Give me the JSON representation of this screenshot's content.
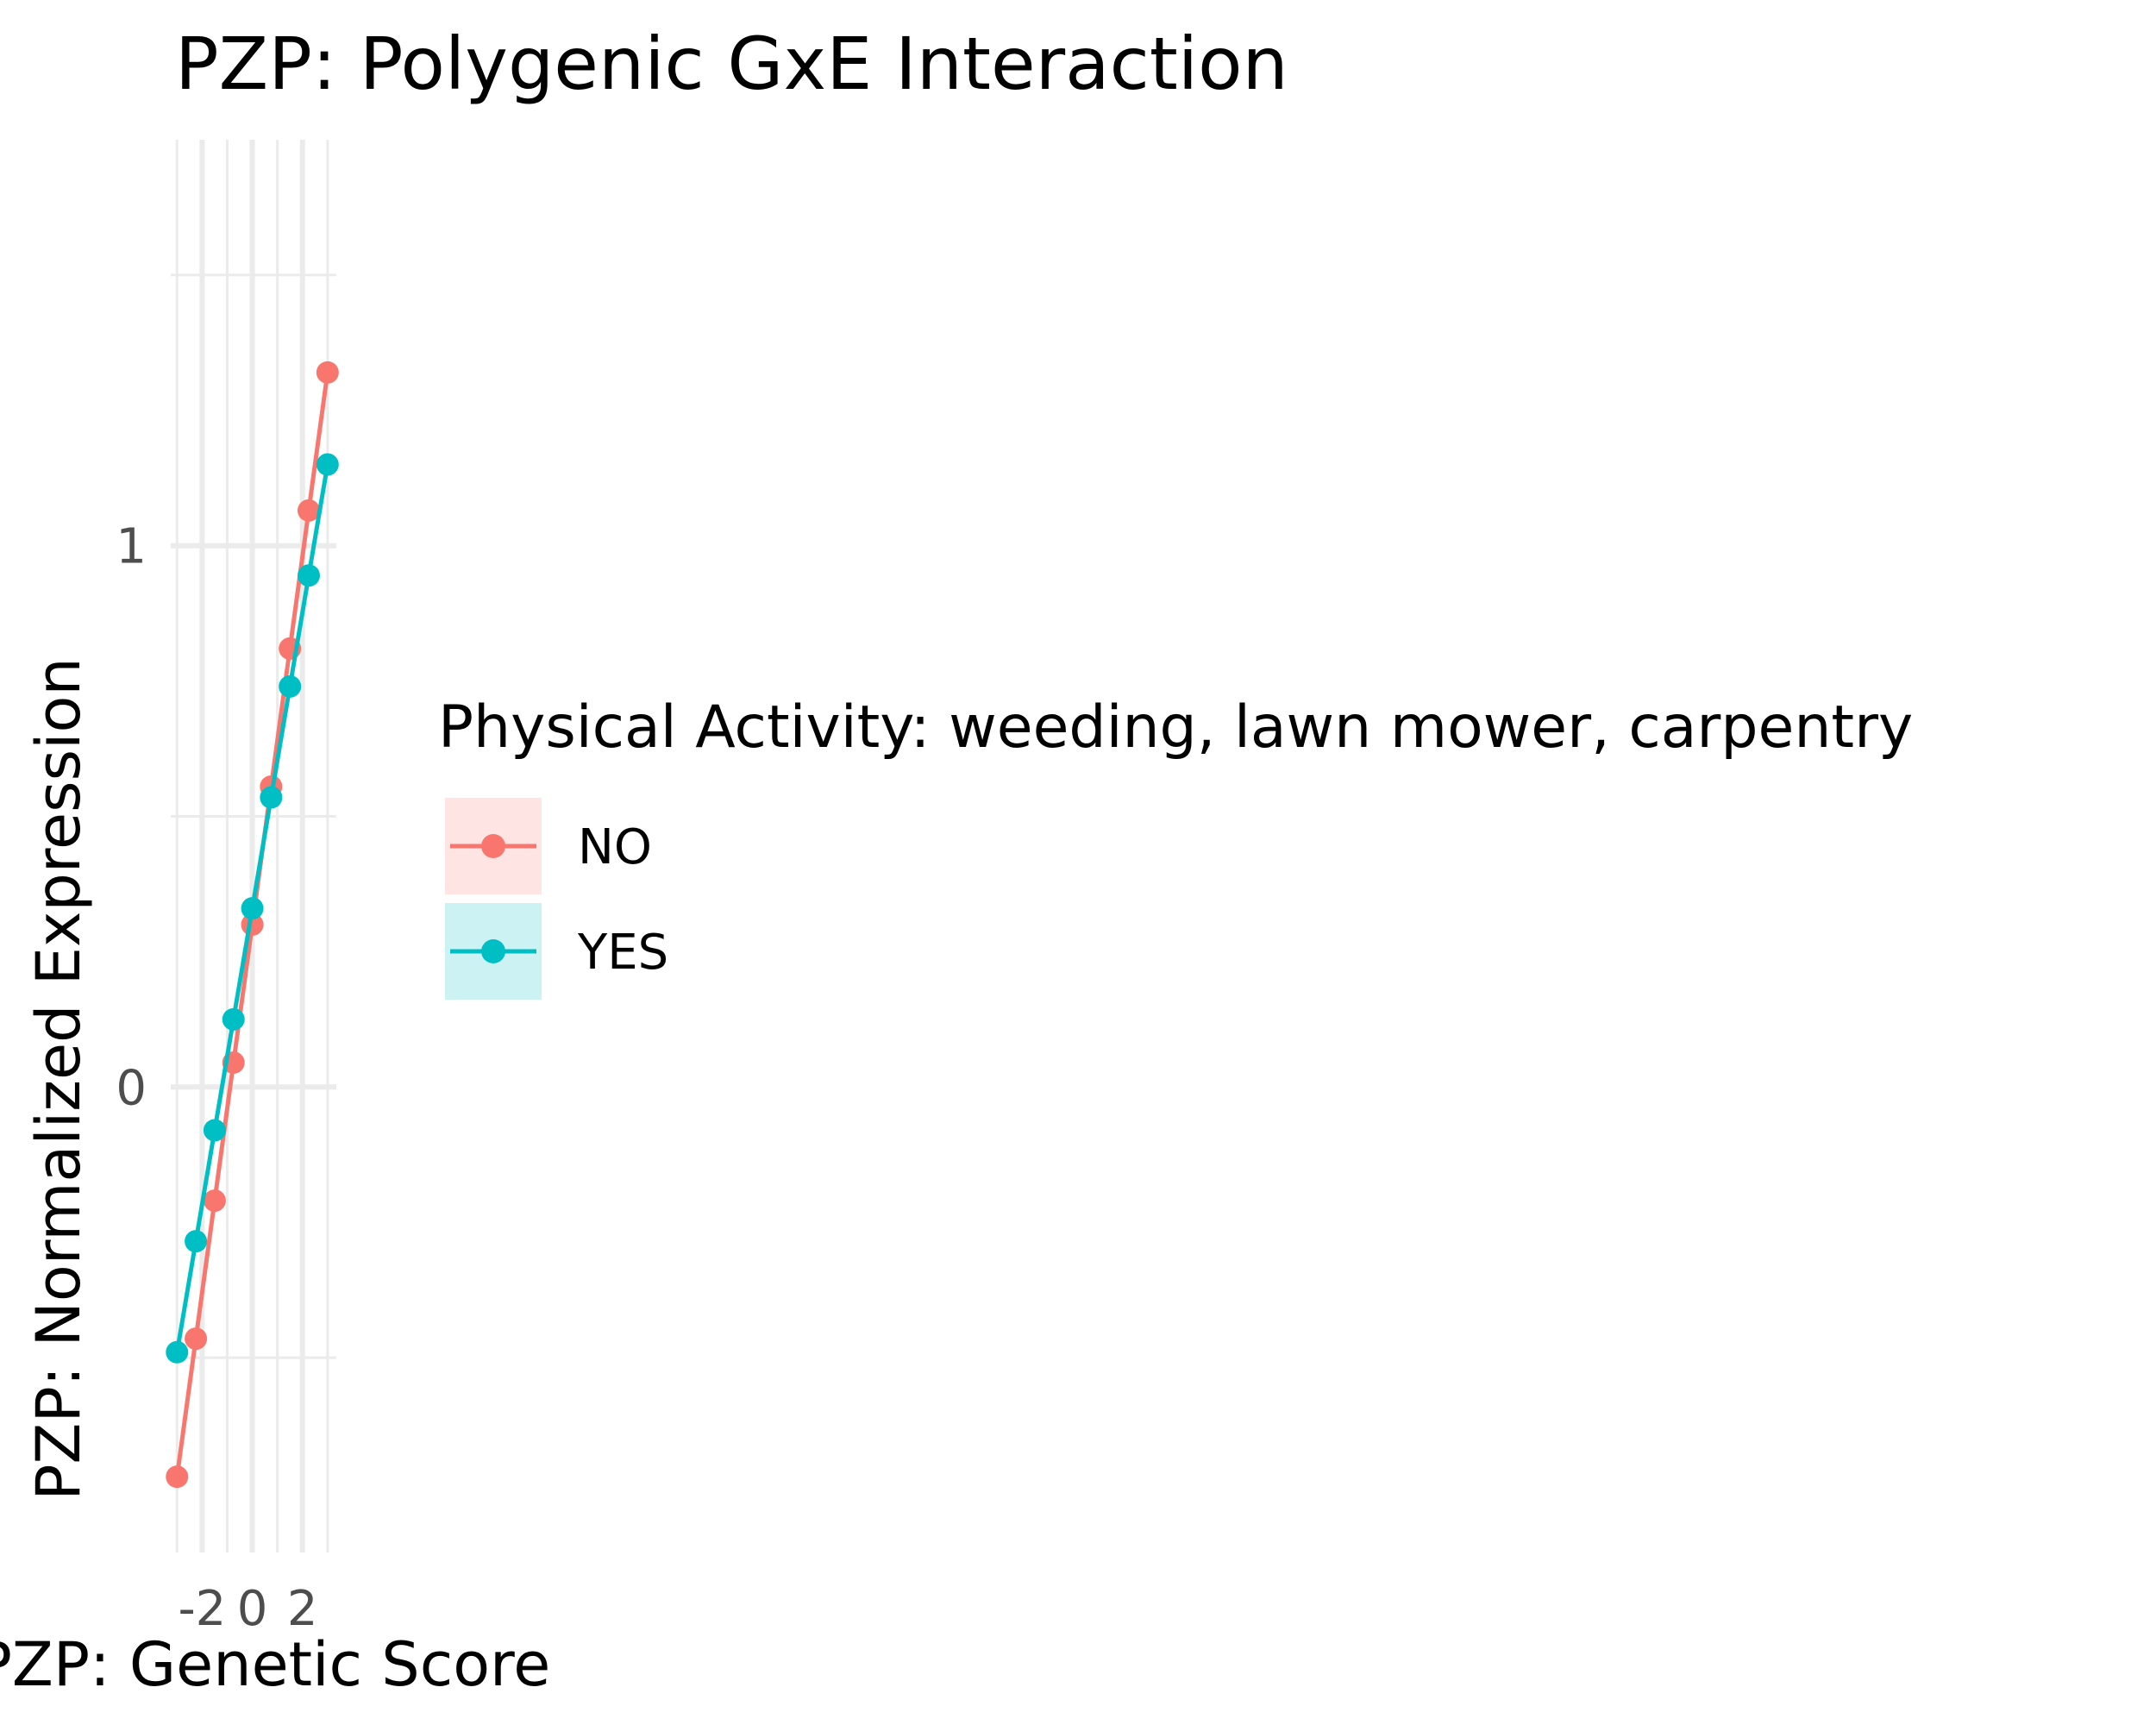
{
  "chart_data": {
    "type": "line",
    "title": "PZP: Polygenic GxE Interaction",
    "xlabel": "PZP: Genetic Score",
    "ylabel": "PZP: Normalized Expression",
    "xlim": [
      -3.25,
      3.35
    ],
    "ylim": [
      -0.86,
      1.75
    ],
    "x_ticks": [
      -2,
      0,
      2
    ],
    "x_tick_labels": [
      "-2",
      "0",
      "2"
    ],
    "y_ticks": [
      0,
      1
    ],
    "y_tick_labels": [
      "0",
      "1"
    ],
    "grid": true,
    "legend": {
      "title": "Physical Activity: weeding, lawn mower, carpentry",
      "position": "right"
    },
    "series": [
      {
        "name": "NO",
        "color": "#F8766D",
        "x": [
          -3.0,
          -2.25,
          -1.5,
          -0.75,
          0.0,
          0.75,
          1.5,
          2.25,
          3.0
        ],
        "y": [
          -0.72,
          -0.465,
          -0.21,
          0.045,
          0.3,
          0.555,
          0.81,
          1.065,
          1.32
        ]
      },
      {
        "name": "YES",
        "color": "#00BFC4",
        "x": [
          -3.0,
          -2.25,
          -1.5,
          -0.75,
          0.0,
          0.75,
          1.5,
          2.25,
          3.0
        ],
        "y": [
          -0.49,
          -0.285,
          -0.08,
          0.125,
          0.33,
          0.535,
          0.74,
          0.945,
          1.15
        ]
      }
    ]
  }
}
